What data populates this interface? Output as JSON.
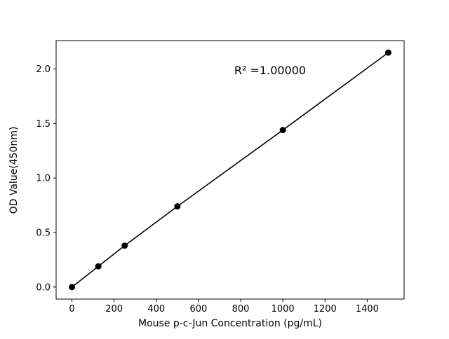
{
  "chart_data": {
    "type": "scatter",
    "title": "",
    "x": [
      0,
      125,
      250,
      500,
      1000,
      1500
    ],
    "y": [
      0.0,
      0.19,
      0.38,
      0.74,
      1.44,
      2.15
    ],
    "xlabel": "Mouse p-c-Jun Concentration (pg/mL)",
    "ylabel": "OD Value(450nm)",
    "annotation": "R² =1.00000",
    "xlim": [
      -75,
      1575
    ],
    "ylim": [
      -0.11,
      2.26
    ],
    "xticks": [
      0,
      200,
      400,
      600,
      800,
      1000,
      1200,
      1400
    ],
    "yticks": [
      0.0,
      0.5,
      1.0,
      1.5,
      2.0
    ],
    "grid": false,
    "legend": "none",
    "line_color": "#000000",
    "marker_color": "#000000",
    "background": "#ffffff"
  }
}
